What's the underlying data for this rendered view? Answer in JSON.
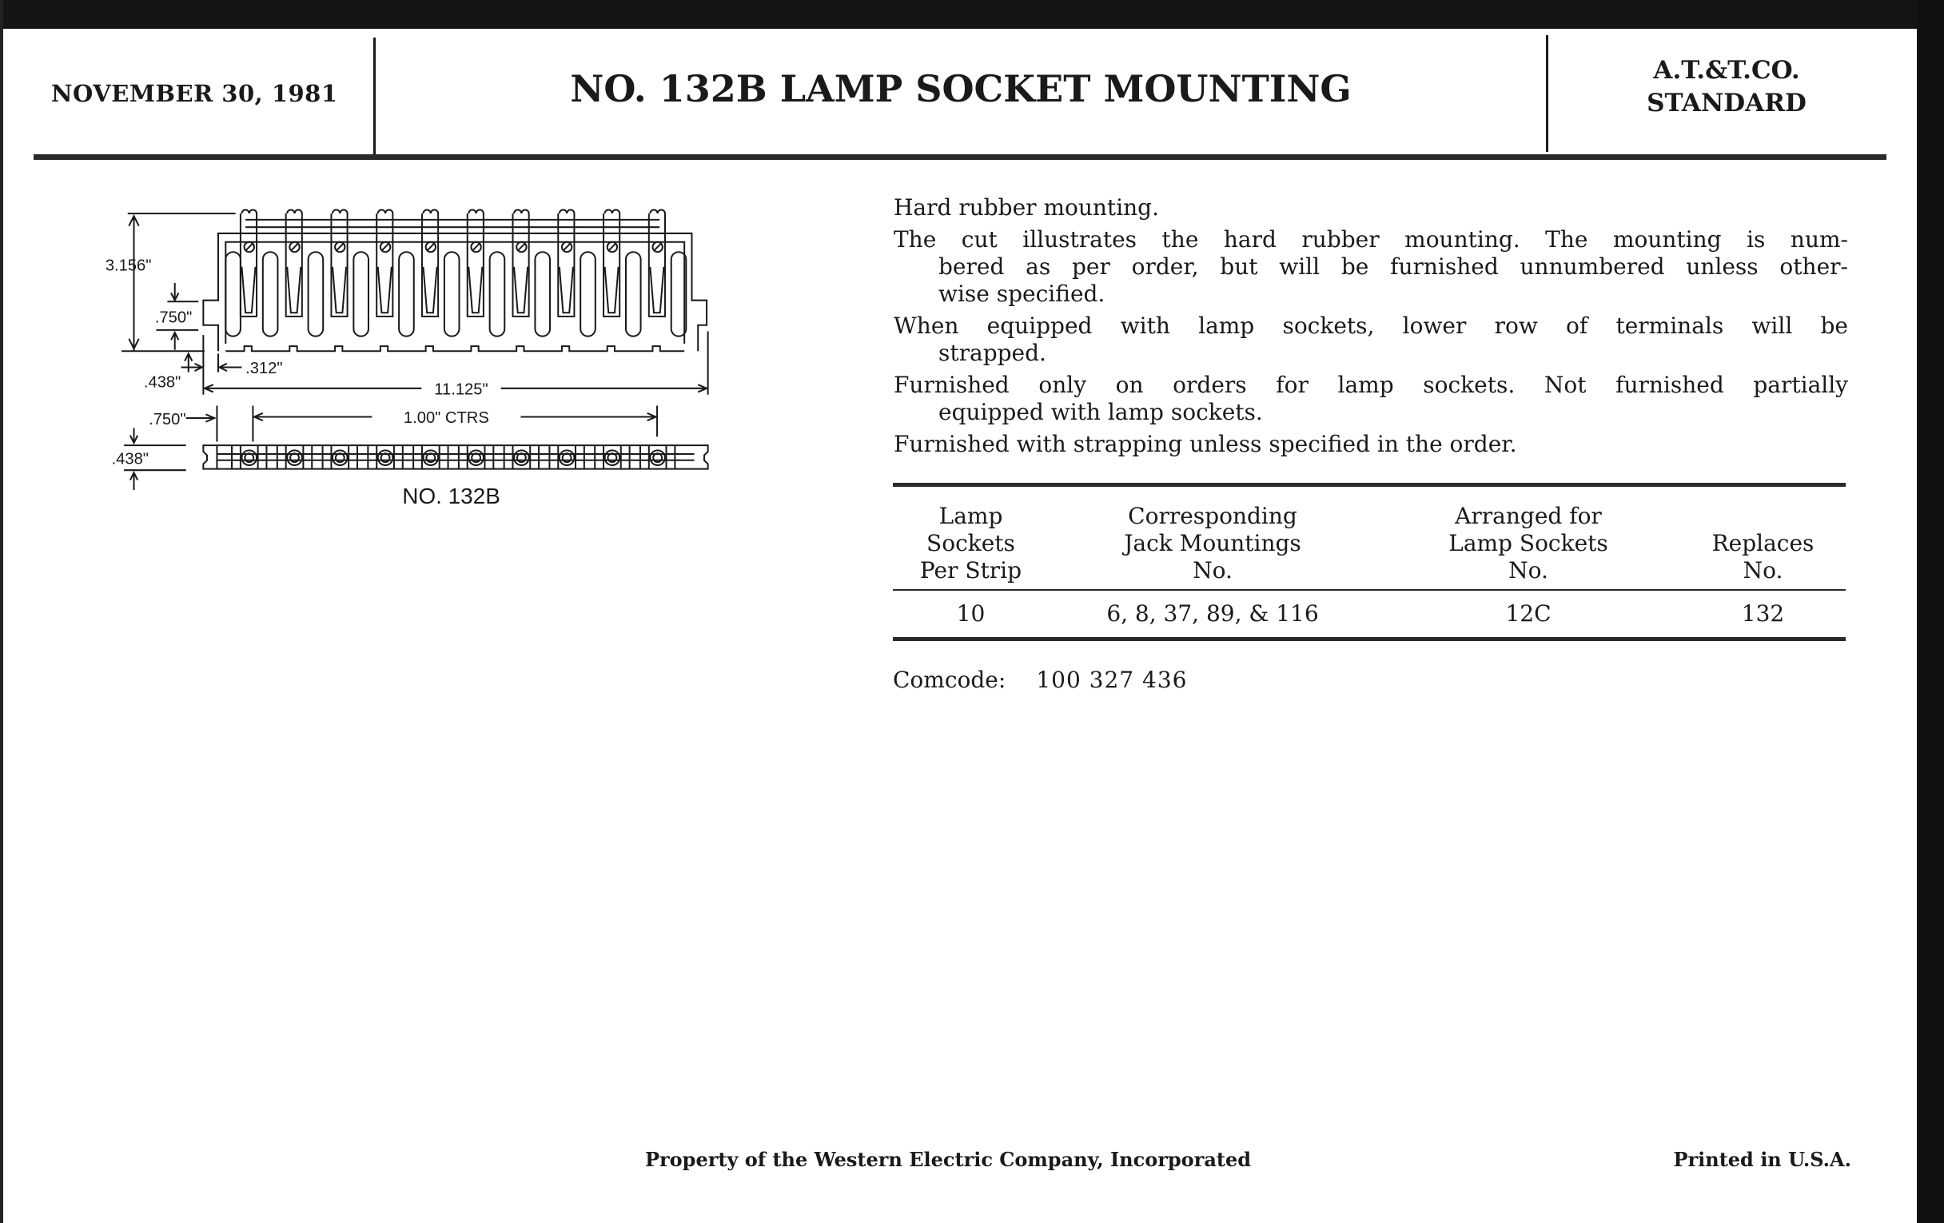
{
  "header": {
    "date": "NOVEMBER 30, 1981",
    "title": "NO. 132B LAMP SOCKET MOUNTING",
    "standard_line1": "A.T.&T.CO.",
    "standard_line2": "STANDARD"
  },
  "drawing": {
    "dim_height": "3.156\"",
    "dim_750_upper": ".750\"",
    "dim_438_upper": ".438\"",
    "dim_312": ".312\"",
    "dim_length": "11.125\"",
    "dim_750_lower": ".750\"",
    "dim_ctrs": "1.00\" CTRS",
    "dim_438_lower": ".438\"",
    "caption": "NO. 132B"
  },
  "description": [
    {
      "lines": [
        "Hard rubber mounting."
      ]
    },
    {
      "lines": [
        "The cut illustrates the hard rubber mounting. The mounting is num-",
        "bered as per order, but will be furnished unnumbered unless other-",
        "wise specified."
      ]
    },
    {
      "lines": [
        "When equipped with lamp sockets, lower row of terminals will be",
        "strapped."
      ]
    },
    {
      "lines": [
        "Furnished only on orders for lamp sockets. Not furnished partially",
        "equipped with lamp sockets."
      ]
    },
    {
      "lines": [
        "Furnished with strapping unless specified in the order."
      ]
    }
  ],
  "table": {
    "headers": [
      [
        "Lamp",
        "Sockets",
        "Per Strip"
      ],
      [
        "Corresponding",
        "Jack Mountings",
        "No."
      ],
      [
        "Arranged for",
        "Lamp Sockets",
        "No."
      ],
      [
        "Replaces",
        "No."
      ]
    ],
    "rows": [
      [
        "10",
        "6, 8, 37, 89, & 116",
        "12C",
        "132"
      ]
    ]
  },
  "comcode": {
    "label": "Comcode:",
    "value": "100 327 436"
  },
  "footer": {
    "property": "Property of the Western Electric Company, Incorporated",
    "printed": "Printed in U.S.A."
  }
}
